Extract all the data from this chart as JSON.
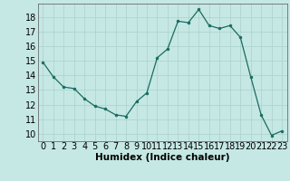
{
  "x": [
    0,
    1,
    2,
    3,
    4,
    5,
    6,
    7,
    8,
    9,
    10,
    11,
    12,
    13,
    14,
    15,
    16,
    17,
    18,
    19,
    20,
    21,
    22,
    23
  ],
  "y": [
    14.9,
    13.9,
    13.2,
    13.1,
    12.4,
    11.9,
    11.7,
    11.3,
    11.2,
    12.2,
    12.8,
    15.2,
    15.8,
    17.7,
    17.6,
    18.5,
    17.4,
    17.2,
    17.4,
    16.6,
    13.9,
    11.3,
    9.9,
    10.2
  ],
  "line_color": "#1a6b5e",
  "marker": "o",
  "marker_size": 2,
  "bg_color": "#c5e8e5",
  "grid_color": "#afd4d0",
  "xlabel": "Humidex (Indice chaleur)",
  "xlabel_fontsize": 7.5,
  "tick_fontsize": 7,
  "ylim": [
    9.5,
    18.9
  ],
  "xlim": [
    -0.5,
    23.5
  ],
  "yticks": [
    10,
    11,
    12,
    13,
    14,
    15,
    16,
    17,
    18
  ],
  "xticks": [
    0,
    1,
    2,
    3,
    4,
    5,
    6,
    7,
    8,
    9,
    10,
    11,
    12,
    13,
    14,
    15,
    16,
    17,
    18,
    19,
    20,
    21,
    22,
    23
  ]
}
